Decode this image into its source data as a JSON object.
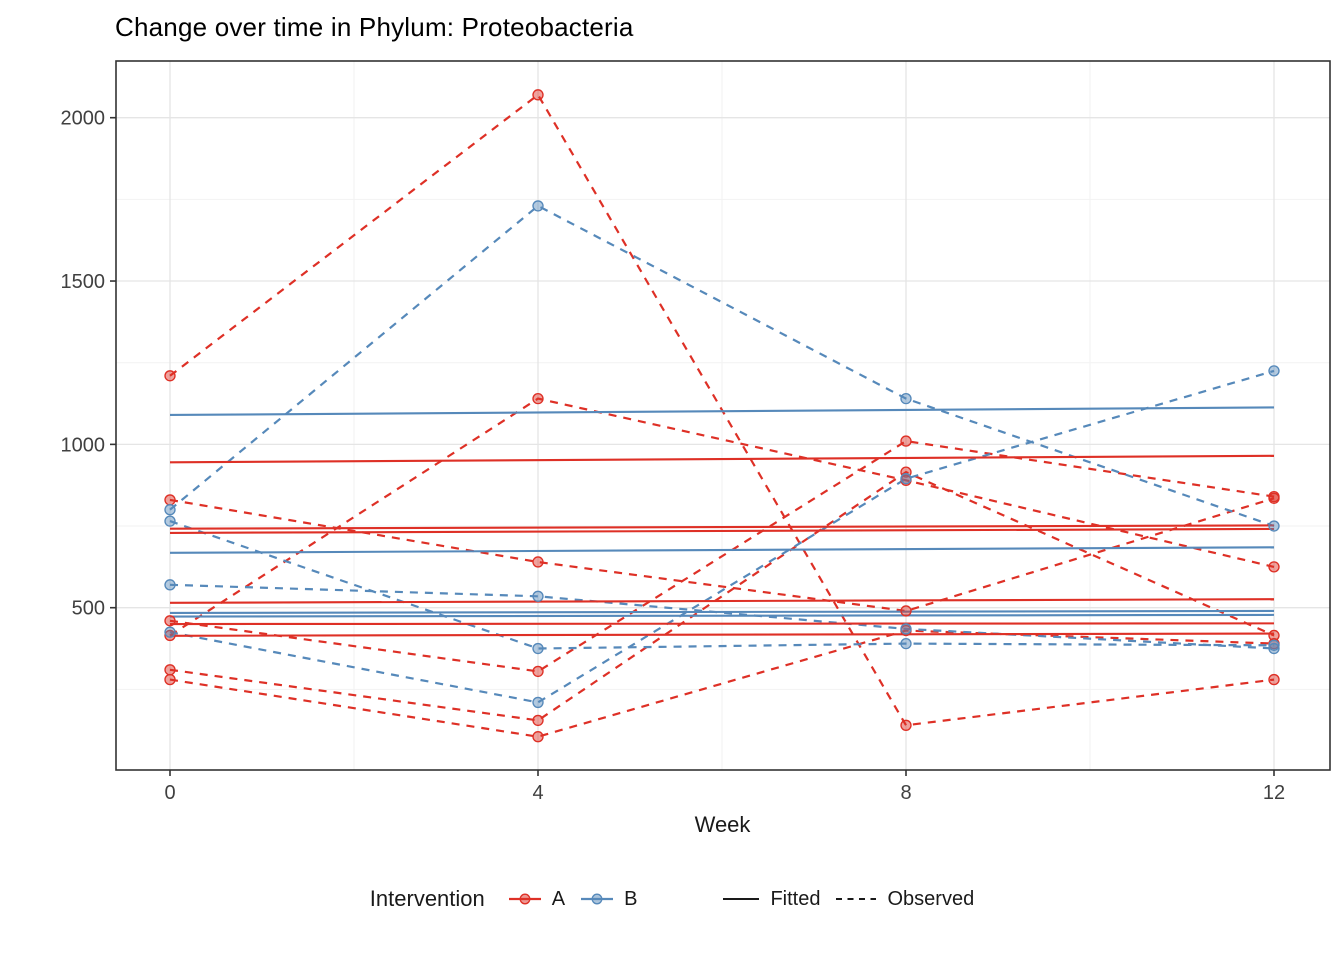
{
  "chart_data": {
    "type": "line",
    "title": "Change over time in Phylum: Proteobacteria",
    "xlabel": "Week",
    "ylabel": "",
    "xlim": [
      -0.6,
      12.6
    ],
    "ylim": [
      0,
      2170
    ],
    "x_ticks": [
      0,
      4,
      8,
      12
    ],
    "x_minor": [
      2,
      6,
      10
    ],
    "y_ticks": [
      500,
      1000,
      1500,
      2000
    ],
    "y_minor": [
      250,
      750,
      1250,
      1750
    ],
    "grid": "on",
    "legend_position": "bottom",
    "weeks": [
      0,
      4,
      8,
      12
    ],
    "groups": {
      "A": {
        "label": "A",
        "color": "#de3026"
      },
      "B": {
        "label": "B",
        "color": "#5689ba"
      }
    },
    "observed_series": [
      {
        "id": "A-1",
        "group": "A",
        "values": [
          1210,
          2070,
          140,
          280
        ]
      },
      {
        "id": "A-2",
        "group": "A",
        "values": [
          415,
          1140,
          890,
          625
        ]
      },
      {
        "id": "A-3",
        "group": "A",
        "values": [
          830,
          640,
          490,
          835
        ]
      },
      {
        "id": "A-4",
        "group": "A",
        "values": [
          460,
          305,
          1010,
          840
        ]
      },
      {
        "id": "A-5",
        "group": "A",
        "values": [
          310,
          155,
          915,
          415
        ]
      },
      {
        "id": "A-6",
        "group": "A",
        "values": [
          280,
          105,
          430,
          390
        ]
      },
      {
        "id": "B-1",
        "group": "B",
        "values": [
          800,
          1730,
          1140,
          750
        ]
      },
      {
        "id": "B-2",
        "group": "B",
        "values": [
          765,
          375,
          390,
          385
        ]
      },
      {
        "id": "B-3",
        "group": "B",
        "values": [
          570,
          535,
          435,
          375
        ]
      },
      {
        "id": "B-4",
        "group": "B",
        "values": [
          425,
          210,
          895,
          1225
        ]
      }
    ],
    "fitted_series": [
      {
        "id": "A-f1",
        "group": "A",
        "start": 945,
        "end": 965
      },
      {
        "id": "A-f2",
        "group": "A",
        "start": 742,
        "end": 752
      },
      {
        "id": "A-f3",
        "group": "A",
        "start": 729,
        "end": 741
      },
      {
        "id": "A-f4",
        "group": "A",
        "start": 515,
        "end": 526
      },
      {
        "id": "A-f5",
        "group": "A",
        "start": 450,
        "end": 452
      },
      {
        "id": "A-f6",
        "group": "A",
        "start": 414,
        "end": 421
      },
      {
        "id": "B-f1",
        "group": "B",
        "start": 1090,
        "end": 1113
      },
      {
        "id": "B-f2",
        "group": "B",
        "start": 668,
        "end": 685
      },
      {
        "id": "B-f3",
        "group": "B",
        "start": 484,
        "end": 490
      },
      {
        "id": "B-f4",
        "group": "B",
        "start": 473,
        "end": 478
      }
    ]
  },
  "legend": {
    "title": "Intervention",
    "group_a": "A",
    "group_b": "B",
    "fitted": "Fitted",
    "observed": "Observed",
    "line_color": "#1a1a1a"
  },
  "axes": {
    "x_title": "Week"
  }
}
